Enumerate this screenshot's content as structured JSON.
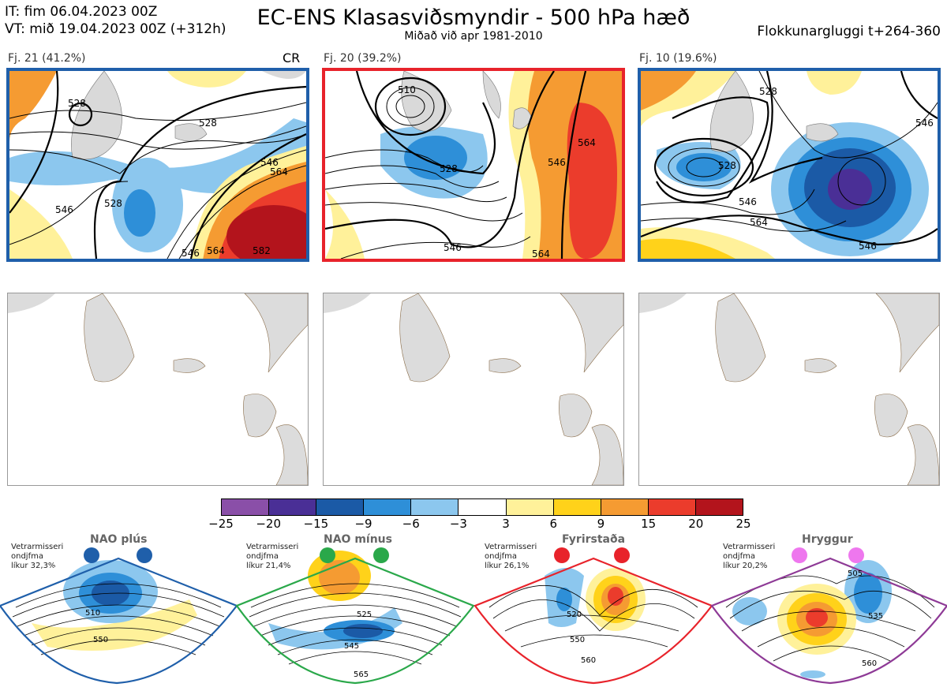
{
  "header": {
    "it_line": "IT: fim 06.04.2023 00Z",
    "vt_line": "VT: mið 19.04.2023 00Z  (+312h)",
    "title": "EC-ENS Klasasviðsmyndir - 500 hPa hæð",
    "subtitle": "Miðað við apr 1981-2010",
    "window_label": "Flokkunargluggi t+264-360"
  },
  "clusters": [
    {
      "label": "Fj. 21 (41.2%)",
      "tag": "CR",
      "border_color": "#1f5faa",
      "contour_labels": [
        "528",
        "528",
        "546",
        "528",
        "546",
        "546",
        "564",
        "564",
        "582"
      ]
    },
    {
      "label": "Fj. 20 (39.2%)",
      "tag": "",
      "border_color": "#e8232b",
      "contour_labels": [
        "510",
        "528",
        "546",
        "546",
        "564",
        "564"
      ]
    },
    {
      "label": "Fj. 10 (19.6%)",
      "tag": "",
      "border_color": "#1f5faa",
      "contour_labels": [
        "528",
        "528",
        "546",
        "564",
        "546",
        "546"
      ]
    }
  ],
  "colorbar": {
    "ticks": [
      "−25",
      "−20",
      "−15",
      "−9",
      "−6",
      "−3",
      "3",
      "6",
      "9",
      "15",
      "20",
      "25"
    ],
    "colors": [
      "#8a4fa8",
      "#4a2f96",
      "#1b5aa6",
      "#2e8fd8",
      "#8cc7ee",
      "#ffffff",
      "#fff19a",
      "#ffd21a",
      "#f59b32",
      "#eb3c2c",
      "#b3141c"
    ]
  },
  "regimes": [
    {
      "label": "NAO plús",
      "note": "Vetrarmisseri\nondjfma\nlíkur 32,3%",
      "color": "#1f5faa",
      "contour_labels": [
        "510",
        "550"
      ]
    },
    {
      "label": "NAO mínus",
      "note": "Vetrarmisseri\nondjfma\nlíkur 21,4%",
      "color": "#2aa84a",
      "contour_labels": [
        "525",
        "545",
        "565"
      ]
    },
    {
      "label": "Fyrirstaða",
      "note": "Vetrarmisseri\nondjfma\nlíkur 26,1%",
      "color": "#e8232b",
      "contour_labels": [
        "520",
        "550",
        "560"
      ]
    },
    {
      "label": "Hryggur",
      "note": "Vetrarmisseri\nondjfma\nlíkur 20,2%",
      "color": "#8e3a96",
      "contour_labels": [
        "505",
        "535",
        "560"
      ]
    }
  ]
}
